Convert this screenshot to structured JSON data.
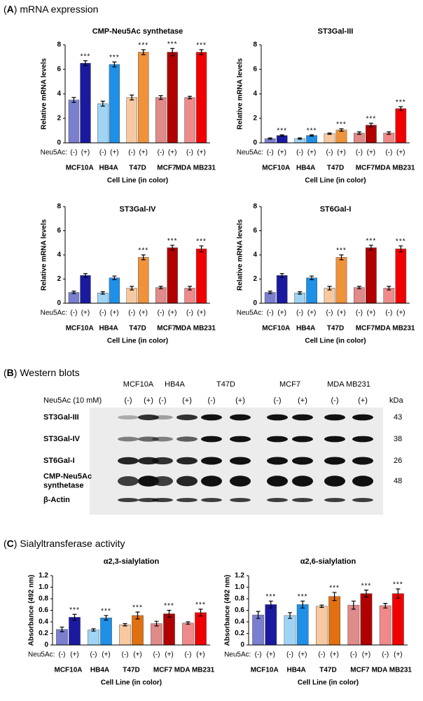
{
  "panel_a": {
    "heading": [
      "(",
      "A",
      ") mRNA expression"
    ]
  },
  "panel_b": {
    "heading": [
      "(",
      "B",
      ") Western blots"
    ],
    "columns": [
      "MCF10A",
      "HB4A",
      "T47D",
      "MCF7",
      "MDA MB231"
    ],
    "lanes": [
      "(-)",
      "(+)",
      "(-)",
      "(+)",
      "(-)",
      "(+)",
      "(-)",
      "(+)",
      "(-)",
      "(+)"
    ],
    "treatment_label": "Neu5Ac (10 mM)",
    "unit_label": "kDa",
    "rows": [
      {
        "label": [
          "ST3Gal-III"
        ],
        "kda": 43
      },
      {
        "label": [
          "ST3Gal-IV"
        ],
        "kda": 38
      },
      {
        "label": [
          "ST6Gal-I"
        ],
        "kda": 26
      },
      {
        "label": [
          "CMP-Neu5Ac",
          "synthetase"
        ],
        "kda": 48
      },
      {
        "label": [
          "β-Actin"
        ]
      }
    ]
  },
  "panel_c": {
    "heading": [
      "(",
      "C",
      ") Sialyltransferase activity"
    ]
  },
  "chart_data": [
    {
      "type": "bar",
      "title": "CMP-Neu5Ac synthetase",
      "ylabel": "Relative mRNA levels",
      "xlabel": "Cell Line (in color)",
      "row_label": "Neu5Ac:",
      "categories": [
        "(-)",
        "(+)",
        "(-)",
        "(+)",
        "(-)",
        "(+)",
        "(-)",
        "(+)",
        "(-)",
        "(+)"
      ],
      "groups": [
        "MCF10A",
        "HB4A",
        "T47D",
        "MCF7",
        "MDA MB231"
      ],
      "group_colors": [
        "#1a1aa0",
        "#1e90e8",
        "#f0923a",
        "#c00000",
        "#ff0000"
      ],
      "colors": [
        "#7b7fd0",
        "#1a1aa0",
        "#9fd4f5",
        "#1e90e8",
        "#f8c9a0",
        "#f0923a",
        "#e08a8a",
        "#b00000",
        "#f08a8a",
        "#f00000"
      ],
      "values": [
        3.5,
        6.5,
        3.2,
        6.4,
        3.7,
        7.4,
        3.7,
        7.4,
        3.7,
        7.4
      ],
      "errors": [
        0.2,
        0.2,
        0.2,
        0.2,
        0.2,
        0.2,
        0.15,
        0.3,
        0.1,
        0.2
      ],
      "sig_labels": [
        null,
        "***",
        null,
        "***",
        null,
        "***",
        null,
        "***",
        null,
        "***"
      ],
      "ylim": [
        0,
        8
      ],
      "yticks": [
        0,
        2,
        4,
        6,
        8
      ]
    },
    {
      "type": "bar",
      "title": "ST3Gal-III",
      "ylabel": "Relative mRNA levels",
      "xlabel": "Cell Line (in color)",
      "row_label": "Neu5Ac:",
      "categories": [
        "(-)",
        "(+)",
        "(-)",
        "(+)",
        "(-)",
        "(+)",
        "(-)",
        "(+)",
        "(-)",
        "(+)"
      ],
      "groups": [
        "MCF10A",
        "HB4A",
        "T47D",
        "MCF7",
        "MDA MB231"
      ],
      "group_colors": [
        "#1a1aa0",
        "#1e90e8",
        "#f0923a",
        "#c00000",
        "#ff0000"
      ],
      "colors": [
        "#7b7fd0",
        "#1a1aa0",
        "#9fd4f5",
        "#1e90e8",
        "#f8c9a0",
        "#f0923a",
        "#e08a8a",
        "#b00000",
        "#f08a8a",
        "#f00000"
      ],
      "values": [
        0.35,
        0.6,
        0.35,
        0.6,
        0.75,
        1.05,
        0.8,
        1.45,
        0.8,
        2.8
      ],
      "errors": [
        0.05,
        0.05,
        0.05,
        0.05,
        0.05,
        0.1,
        0.1,
        0.15,
        0.1,
        0.15
      ],
      "sig_labels": [
        null,
        "***",
        null,
        "***",
        null,
        "***",
        null,
        "***",
        null,
        "***"
      ],
      "ylim": [
        0,
        8
      ],
      "yticks": [
        0,
        2,
        4,
        6,
        8
      ]
    },
    {
      "type": "bar",
      "title": "ST3Gal-IV",
      "ylabel": "Relative mRNA levels",
      "xlabel": "Cell Line (in color)",
      "row_label": "Neu5Ac:",
      "categories": [
        "(-)",
        "(+)",
        "(-)",
        "(+)",
        "(-)",
        "(+)",
        "(-)",
        "(+)",
        "(-)",
        "(+)"
      ],
      "groups": [
        "MCF10A",
        "HB4A",
        "T47D",
        "MCF7",
        "MDA MB231"
      ],
      "group_colors": [
        "#1a1aa0",
        "#1e90e8",
        "#f0923a",
        "#c00000",
        "#ff0000"
      ],
      "colors": [
        "#7b7fd0",
        "#1a1aa0",
        "#9fd4f5",
        "#1e90e8",
        "#f8c9a0",
        "#f0923a",
        "#e08a8a",
        "#b00000",
        "#f08a8a",
        "#f00000"
      ],
      "values": [
        0.9,
        2.3,
        0.85,
        2.1,
        1.25,
        3.8,
        1.3,
        4.6,
        1.25,
        4.5
      ],
      "errors": [
        0.1,
        0.15,
        0.1,
        0.15,
        0.15,
        0.2,
        0.1,
        0.2,
        0.15,
        0.25
      ],
      "sig_labels": [
        null,
        null,
        null,
        null,
        null,
        "***",
        null,
        "***",
        null,
        "***"
      ],
      "ylim": [
        0,
        8
      ],
      "yticks": [
        0,
        2,
        4,
        6,
        8
      ]
    },
    {
      "type": "bar",
      "title": "ST6Gal-I",
      "ylabel": "Relative mRNA levels",
      "xlabel": "Cell Line (in color)",
      "row_label": "Neu5Ac:",
      "categories": [
        "(-)",
        "(+)",
        "(-)",
        "(+)",
        "(-)",
        "(+)",
        "(-)",
        "(+)",
        "(-)",
        "(+)"
      ],
      "groups": [
        "MCF10A",
        "HB4A",
        "T47D",
        "MCF7",
        "MDA MB231"
      ],
      "group_colors": [
        "#1a1aa0",
        "#1e90e8",
        "#f0923a",
        "#c00000",
        "#ff0000"
      ],
      "colors": [
        "#7b7fd0",
        "#1a1aa0",
        "#9fd4f5",
        "#1e90e8",
        "#f8c9a0",
        "#f0923a",
        "#e08a8a",
        "#b00000",
        "#f08a8a",
        "#f00000"
      ],
      "values": [
        0.9,
        2.3,
        0.85,
        2.1,
        1.25,
        3.8,
        1.3,
        4.6,
        1.25,
        4.5
      ],
      "errors": [
        0.1,
        0.15,
        0.1,
        0.15,
        0.15,
        0.2,
        0.1,
        0.2,
        0.15,
        0.25
      ],
      "sig_labels": [
        null,
        null,
        null,
        null,
        null,
        "***",
        null,
        "***",
        null,
        "***"
      ],
      "ylim": [
        0,
        8
      ],
      "yticks": [
        0,
        2,
        4,
        6,
        8
      ]
    },
    {
      "type": "bar",
      "title": "α2,3-sialylation",
      "ylabel": "Absorbance (492 nm)",
      "xlabel": "Cell Line (in color)",
      "row_label": "Neu5Ac:",
      "categories": [
        "(-)",
        "(+)",
        "(-)",
        "(+)",
        "(-)",
        "(+)",
        "(-)",
        "(+)",
        "(-)",
        "(+)"
      ],
      "groups": [
        "MCF10A",
        "HB4A",
        "T47D",
        "MCF7",
        "MDA MB231"
      ],
      "group_colors": [
        "#1a1aa0",
        "#1e90e8",
        "#f0923a",
        "#c00000",
        "#ff0000"
      ],
      "colors": [
        "#7b7fd0",
        "#1a1aa0",
        "#9fd4f5",
        "#1e90e8",
        "#f8c9a0",
        "#e07010",
        "#e08a8a",
        "#b00000",
        "#f08a8a",
        "#f00000"
      ],
      "values": [
        0.27,
        0.48,
        0.26,
        0.47,
        0.35,
        0.51,
        0.37,
        0.54,
        0.38,
        0.56
      ],
      "errors": [
        0.04,
        0.05,
        0.02,
        0.04,
        0.02,
        0.06,
        0.04,
        0.06,
        0.02,
        0.06
      ],
      "sig_labels": [
        null,
        "***",
        null,
        "***",
        null,
        "***",
        null,
        "***",
        null,
        "***"
      ],
      "ylim": [
        0,
        1.2
      ],
      "yticks": [
        0,
        0.2,
        0.4,
        0.6,
        0.8,
        {
          "value": 1,
          "label": "1.0"
        },
        1.2
      ]
    },
    {
      "type": "bar",
      "title": "α2,6-sialylation",
      "ylabel": "Absorbance (492 nm)",
      "xlabel": "Cell Line (in color)",
      "row_label": "Neu5Ac:",
      "categories": [
        "(-)",
        "(+)",
        "(-)",
        "(+)",
        "(-)",
        "(+)",
        "(-)",
        "(+)",
        "(-)",
        "(+)"
      ],
      "groups": [
        "MCF10A",
        "HB4A",
        "T47D",
        "MCF7",
        "MDA MB231"
      ],
      "group_colors": [
        "#1a1aa0",
        "#1e90e8",
        "#f0923a",
        "#c00000",
        "#ff0000"
      ],
      "colors": [
        "#7b7fd0",
        "#1a1aa0",
        "#9fd4f5",
        "#1e90e8",
        "#f8c9a0",
        "#e07010",
        "#e08a8a",
        "#b00000",
        "#f08a8a",
        "#f00000"
      ],
      "values": [
        0.52,
        0.7,
        0.51,
        0.7,
        0.67,
        0.84,
        0.69,
        0.89,
        0.68,
        0.89
      ],
      "errors": [
        0.06,
        0.06,
        0.05,
        0.06,
        0.02,
        0.07,
        0.07,
        0.06,
        0.04,
        0.08
      ],
      "sig_labels": [
        null,
        "***",
        null,
        "***",
        null,
        "***",
        null,
        "***",
        null,
        "***"
      ],
      "ylim": [
        0,
        1.2
      ],
      "yticks": [
        0,
        0.2,
        0.4,
        0.6,
        0.8,
        {
          "value": 1,
          "label": "1.0"
        },
        1.2
      ]
    }
  ]
}
